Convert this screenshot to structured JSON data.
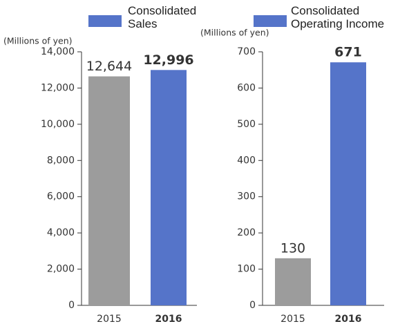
{
  "chart_data": [
    {
      "type": "bar",
      "legend_label": "Consolidated Sales",
      "legend_color": "#5574c9",
      "y_label": "(Millions of yen)",
      "categories": [
        "2015",
        "2016"
      ],
      "values": [
        12644,
        12996
      ],
      "value_labels": [
        "12,644",
        "12,996"
      ],
      "colors": [
        "#9c9c9c",
        "#5574c9"
      ],
      "ylim": [
        0,
        14000
      ],
      "yticks": [
        0,
        {
          "value": 2000,
          "label": "2,000"
        },
        {
          "value": 4000,
          "label": "4,000"
        },
        {
          "value": 6000,
          "label": "6,000"
        },
        {
          "value": 8000,
          "label": "8,000"
        },
        {
          "value": 10000,
          "label": "10,000"
        },
        {
          "value": 12000,
          "label": "12,000"
        },
        {
          "value": 14000,
          "label": "14,000"
        }
      ]
    },
    {
      "type": "bar",
      "legend_label": "Consolidated Operating Income",
      "legend_color": "#5574c9",
      "y_label": "(Millions of yen)",
      "categories": [
        "2015",
        "2016"
      ],
      "values": [
        130,
        671
      ],
      "colors": [
        "#9c9c9c",
        "#5574c9"
      ],
      "ylim": [
        0,
        700
      ],
      "yticks": [
        0,
        100,
        200,
        300,
        400,
        500,
        600,
        700
      ]
    }
  ]
}
